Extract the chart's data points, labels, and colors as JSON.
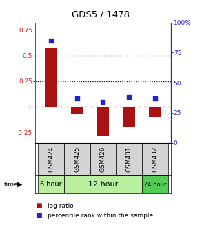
{
  "title": "GDS5 / 1478",
  "samples": [
    "GSM424",
    "GSM425",
    "GSM426",
    "GSM431",
    "GSM432"
  ],
  "log_ratio": [
    0.57,
    -0.07,
    -0.28,
    -0.2,
    -0.1
  ],
  "percentile_rank": [
    85,
    37,
    34,
    38,
    37
  ],
  "bar_color": "#aa1111",
  "dot_color": "#2222cc",
  "ylim_left": [
    -0.35,
    0.82
  ],
  "ylim_right": [
    0,
    100
  ],
  "yticks_left": [
    -0.25,
    0.0,
    0.25,
    0.5,
    0.75
  ],
  "yticks_right": [
    0,
    25,
    50,
    75,
    100
  ],
  "hlines": [
    0.5,
    0.25,
    0.0
  ],
  "hline_styles": [
    "dotted",
    "dotted",
    "dashed"
  ],
  "hline_colors": [
    "black",
    "black",
    "#cc3333"
  ],
  "left_label_color": "#cc2222",
  "right_label_color": "#2222cc",
  "sample_bg": "#d4d4d4",
  "time_info": [
    {
      "start": 0,
      "end": 1,
      "label": "6 hour",
      "color": "#b8f0a0",
      "fontsize": 7
    },
    {
      "start": 1,
      "end": 4,
      "label": "12 hour",
      "color": "#b8f0a0",
      "fontsize": 8
    },
    {
      "start": 4,
      "end": 5,
      "label": "24 hour",
      "color": "#55cc55",
      "fontsize": 6
    }
  ]
}
